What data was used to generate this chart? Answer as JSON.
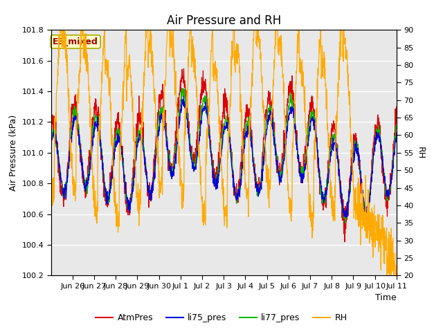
{
  "title": "Air Pressure and RH",
  "xlabel": "Time",
  "ylabel_left": "Air Pressure (kPa)",
  "ylabel_right": "RH",
  "ylim_left": [
    100.2,
    101.8
  ],
  "ylim_right": [
    20,
    90
  ],
  "yticks_left": [
    100.2,
    100.4,
    100.6,
    100.8,
    101.0,
    101.2,
    101.4,
    101.6,
    101.8
  ],
  "yticks_right": [
    20,
    25,
    30,
    35,
    40,
    45,
    50,
    55,
    60,
    65,
    70,
    75,
    80,
    85,
    90
  ],
  "xtick_labels": [
    "Jun 26",
    "Jun 27",
    "Jun 28",
    "Jun 29",
    "Jun 30",
    "Jul 1",
    "Jul 2",
    "Jul 3",
    "Jul 4",
    "Jul 5",
    "Jul 6",
    "Jul 7",
    "Jul 8",
    "Jul 9",
    "Jul 10",
    "Jul 11"
  ],
  "annotation_text": "EE_mixed",
  "annotation_bg": "#ffffcc",
  "annotation_border": "#aaaa00",
  "annotation_text_color": "#990000",
  "colors": {
    "AtmPres": "#dd0000",
    "li75_pres": "#0000dd",
    "li77_pres": "#00bb00",
    "RH": "#ffaa00"
  },
  "background_color": "#e8e8e8",
  "grid_color": "#ffffff",
  "title_fontsize": 12,
  "label_fontsize": 9,
  "tick_fontsize": 8,
  "legend_fontsize": 9
}
